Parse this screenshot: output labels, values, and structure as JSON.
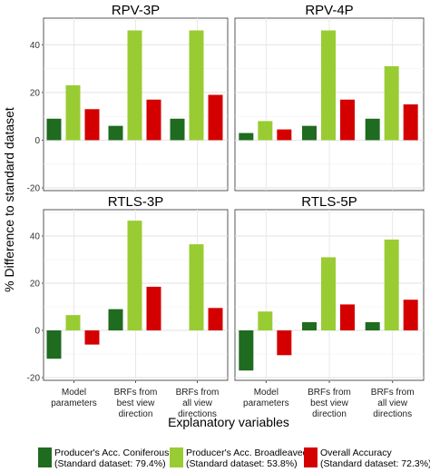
{
  "chart_data": {
    "type": "bar",
    "ylabel": "% Difference to standard dataset",
    "xlabel": "Explanatory variables",
    "ylim": [
      -20,
      50
    ],
    "yticks": [
      -20,
      0,
      20,
      40
    ],
    "grid": true,
    "legend_position": "bottom",
    "categories": [
      [
        "Model",
        "parameters"
      ],
      [
        "BRFs from",
        "best view",
        "direction"
      ],
      [
        "BRFs from",
        "all view",
        "directions"
      ]
    ],
    "series": [
      {
        "name": "Producer's Acc. Coniferous",
        "note": "(Standard dataset: 79.4%)",
        "color": "#1f6b1f"
      },
      {
        "name": "Producer's Acc. Broadleaved",
        "note": "(Standard dataset: 53.8%)",
        "color": "#99cc33"
      },
      {
        "name": "Overall Accuracy",
        "note": "(Standard dataset: 72.3%)",
        "color": "#d40000"
      }
    ],
    "panels": [
      {
        "title": "RPV-3P",
        "values": [
          [
            9,
            23,
            13
          ],
          [
            6,
            46,
            17
          ],
          [
            9,
            46,
            19
          ]
        ]
      },
      {
        "title": "RPV-4P",
        "values": [
          [
            3,
            8,
            4.5
          ],
          [
            6,
            46,
            17
          ],
          [
            9,
            31,
            15
          ]
        ]
      },
      {
        "title": "RTLS-3P",
        "values": [
          [
            -12,
            6.5,
            -6
          ],
          [
            9,
            46.5,
            18.5
          ],
          [
            null,
            36.5,
            9.5
          ]
        ]
      },
      {
        "title": "RTLS-5P",
        "values": [
          [
            -17,
            8,
            -10.5
          ],
          [
            3.5,
            31,
            11
          ],
          [
            3.5,
            38.5,
            13
          ]
        ]
      }
    ]
  }
}
